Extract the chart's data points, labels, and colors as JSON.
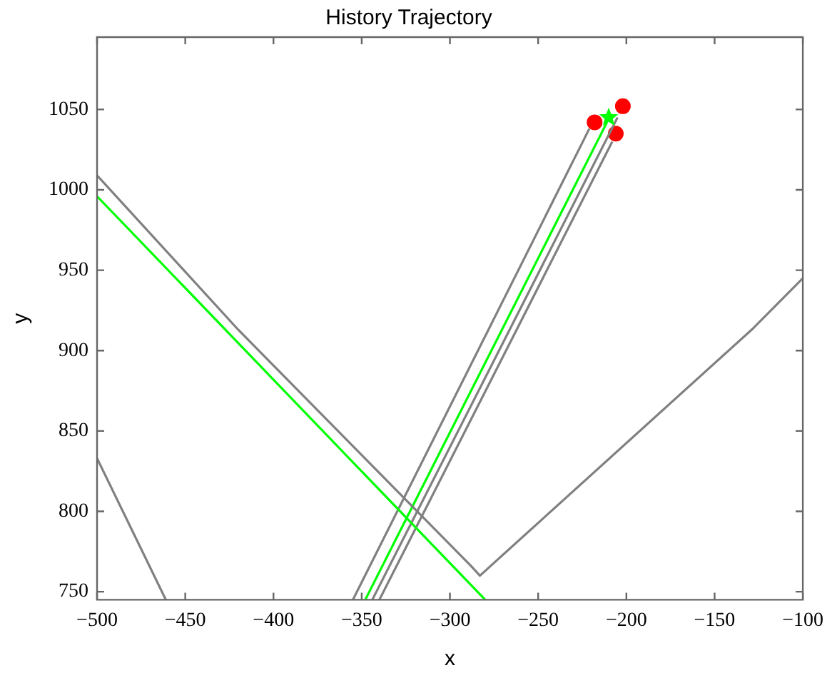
{
  "chart_data": {
    "type": "line",
    "title": "History Trajectory",
    "xlabel": "x",
    "ylabel": "y",
    "xlim": [
      -500,
      -100
    ],
    "ylim": [
      745,
      1095
    ],
    "xticks": [
      -500,
      -450,
      -400,
      -350,
      -300,
      -250,
      -200,
      -150,
      -100
    ],
    "yticks": [
      750,
      800,
      850,
      900,
      950,
      1000,
      1050
    ],
    "series": [
      {
        "color": "#808080",
        "x": [
          -500,
          -420,
          -288,
          -283,
          -278,
          -128,
          -100
        ],
        "values": [
          1009,
          913,
          766,
          760,
          765,
          914,
          945
        ]
      },
      {
        "color": "#00ff00",
        "x": [
          -500,
          -280
        ],
        "values": [
          996,
          745
        ]
      },
      {
        "color": "#808080",
        "x": [
          -500,
          -461
        ],
        "values": [
          833,
          745
        ]
      },
      {
        "color": "#808080",
        "x": [
          -355,
          -221
        ],
        "values": [
          745,
          1038
        ]
      },
      {
        "color": "#00ff00",
        "x": [
          -348,
          -211
        ],
        "values": [
          745,
          1042
        ]
      },
      {
        "color": "#808080",
        "x": [
          -344,
          -205
        ],
        "values": [
          745,
          1045
        ]
      },
      {
        "color": "#808080",
        "x": [
          -340,
          -208
        ],
        "values": [
          745,
          1030
        ]
      },
      {
        "type": "scatter",
        "marker": "circle",
        "color": "#ff0000",
        "x": [
          -218,
          -202,
          -206
        ],
        "values": [
          1042,
          1052,
          1035
        ]
      },
      {
        "type": "scatter",
        "marker": "star",
        "color": "#00ff00",
        "x": [
          -210
        ],
        "values": [
          1045
        ]
      }
    ]
  }
}
